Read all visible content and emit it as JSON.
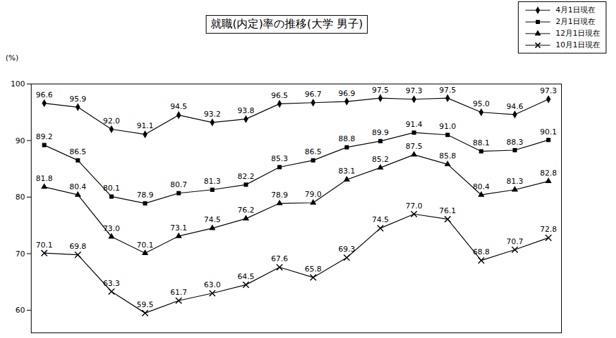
{
  "chart_data": {
    "type": "line",
    "title": "就職(内定)率の推移(大学 男子)",
    "y_label": "(%)",
    "categories": [
      null,
      null,
      null,
      null,
      null,
      null,
      null,
      null,
      null,
      null,
      null,
      null,
      null,
      null,
      null,
      null
    ],
    "series": [
      {
        "name": "4月1日現在",
        "color": "#000000",
        "marker": "diamond",
        "values": [
          96.6,
          95.9,
          92.0,
          91.1,
          94.5,
          93.2,
          93.8,
          96.5,
          96.7,
          96.9,
          97.5,
          97.3,
          97.5,
          95.0,
          94.6,
          97.3
        ],
        "value_labels": [
          "96.6",
          "95.9",
          "92.0",
          "91.1",
          "94.5",
          "93.2",
          "93.8",
          "96.5",
          "96.7",
          "96.9",
          "97.5",
          "97.3",
          "97.5",
          "95.0",
          "94.6",
          "97.3"
        ]
      },
      {
        "name": "2月1日現在",
        "color": "#000000",
        "marker": "square",
        "values": [
          89.2,
          86.5,
          80.1,
          78.9,
          80.7,
          81.3,
          82.2,
          85.3,
          86.5,
          88.8,
          89.9,
          91.4,
          91.0,
          88.1,
          88.3,
          90.1
        ],
        "value_labels": [
          "89.2",
          "86.5",
          "80.1",
          "78.9",
          "80.7",
          "81.3",
          "82.2",
          "85.3",
          "86.5",
          "88.8",
          "89.9",
          "91.4",
          "91.0",
          "88.1",
          "88.3",
          "90.1"
        ]
      },
      {
        "name": "12月1日現在",
        "color": "#000000",
        "marker": "triangle",
        "values": [
          81.8,
          80.4,
          73.0,
          70.1,
          73.1,
          74.5,
          76.2,
          78.9,
          79.0,
          83.1,
          85.2,
          87.5,
          85.8,
          80.4,
          81.3,
          82.8
        ],
        "value_labels": [
          "81.8",
          "80.4",
          "73.0",
          "70.1",
          "73.1",
          "74.5",
          "76.2",
          "78.9",
          "79.0",
          "83.1",
          "85.2",
          "87.5",
          "85.8",
          "80.4",
          "81.3",
          "82.8"
        ]
      },
      {
        "name": "10月1日現在",
        "color": "#000000",
        "marker": "x",
        "values": [
          70.1,
          69.8,
          63.3,
          59.5,
          61.7,
          63.0,
          64.5,
          67.6,
          65.8,
          69.3,
          74.5,
          77.0,
          76.1,
          68.8,
          70.7,
          72.8
        ],
        "value_labels": [
          "70.1",
          "69.8",
          "63.3",
          "59.5",
          "61.7",
          "63.0",
          "64.5",
          "67.6",
          "65.8",
          "69.3",
          "74.5",
          "77.0",
          "76.1",
          "68.8",
          "70.7",
          "72.8"
        ]
      }
    ],
    "ylim": [
      56,
      100
    ],
    "yticks": [
      60,
      70,
      80,
      90,
      100
    ],
    "grid": false,
    "legend": "upper right",
    "data_labels": true,
    "tick_labels": "y"
  }
}
